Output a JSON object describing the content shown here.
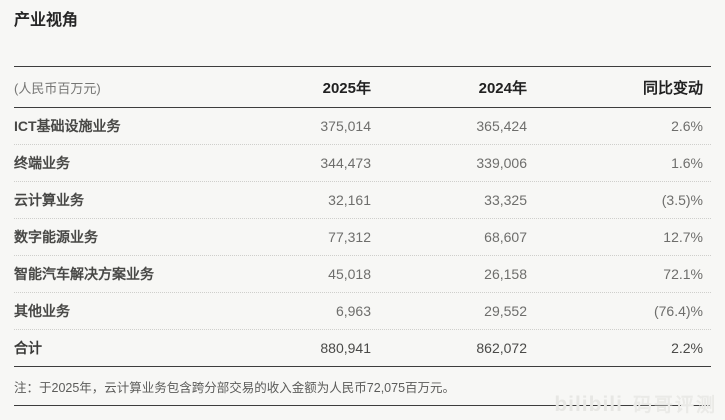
{
  "title": "产业视角",
  "table": {
    "unit_label": "(人民币百万元)",
    "columns": {
      "y2025": "2025年",
      "y2024": "2024年",
      "yoy": "同比变动"
    },
    "rows": [
      {
        "label": "ICT基础设施业务",
        "y2025": "375,014",
        "y2024": "365,424",
        "yoy": "2.6%"
      },
      {
        "label": "终端业务",
        "y2025": "344,473",
        "y2024": "339,006",
        "yoy": "1.6%"
      },
      {
        "label": "云计算业务",
        "y2025": "32,161",
        "y2024": "33,325",
        "yoy": "(3.5)%"
      },
      {
        "label": "数字能源业务",
        "y2025": "77,312",
        "y2024": "68,607",
        "yoy": "12.7%"
      },
      {
        "label": "智能汽车解决方案业务",
        "y2025": "45,018",
        "y2024": "26,158",
        "yoy": "72.1%"
      },
      {
        "label": "其他业务",
        "y2025": "6,963",
        "y2024": "29,552",
        "yoy": "(76.4)%"
      }
    ],
    "total": {
      "label": "合计",
      "y2025": "880,941",
      "y2024": "862,072",
      "yoy": "2.2%"
    }
  },
  "footnote": "注：于2025年，云计算业务包含跨分部交易的收入金额为人民币72,075百万元。",
  "watermark": {
    "logo": "bilibili",
    "text": "码哥评测"
  },
  "colors": {
    "background": "#f7f7f5",
    "rule": "#3d3d3d",
    "dotted_rule": "#cfcfcc",
    "text_dark": "#262626",
    "text_gray": "#6e6e6c"
  }
}
